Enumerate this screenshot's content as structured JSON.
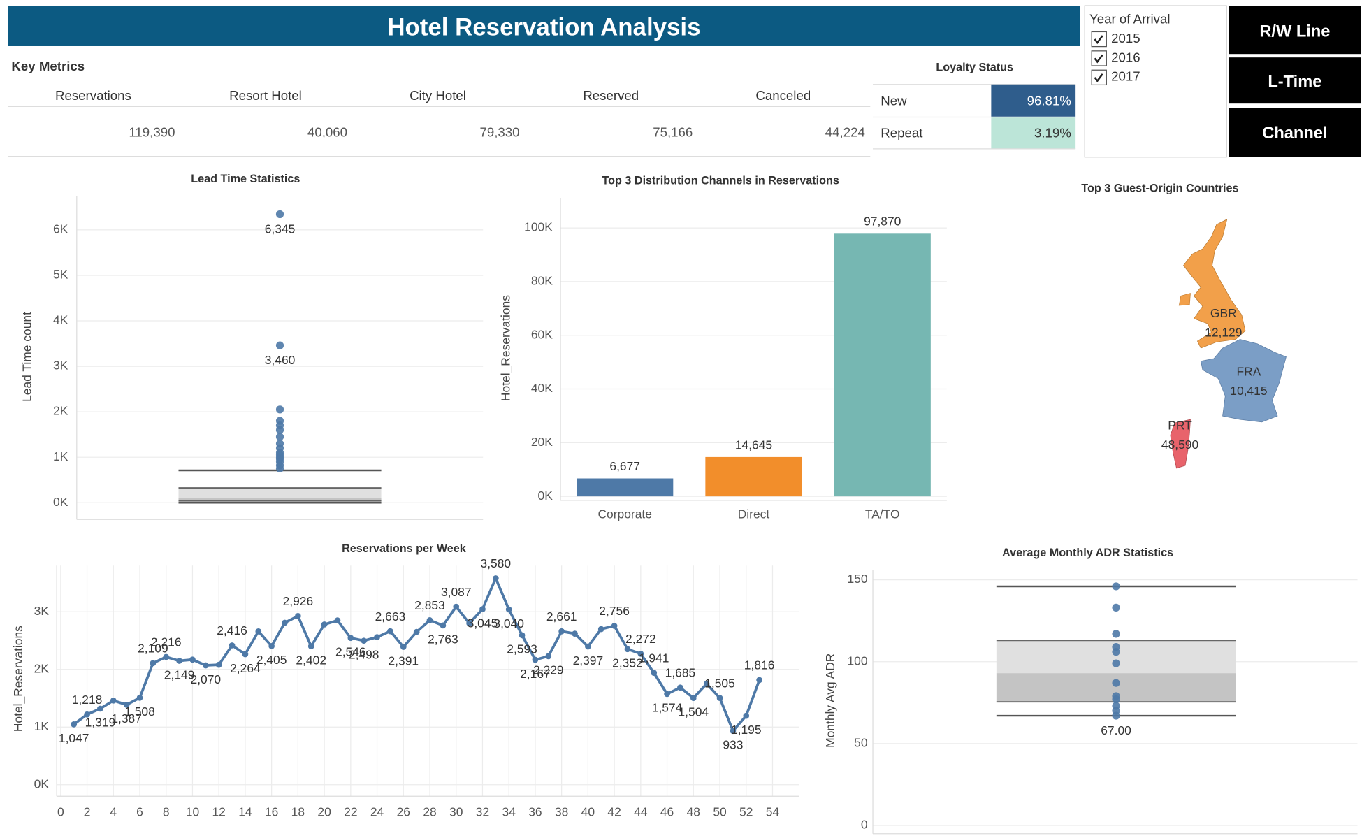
{
  "header": {
    "title": "Hotel Reservation Analysis"
  },
  "key_metrics": {
    "title": "Key Metrics",
    "columns": [
      "Reservations",
      "Resort Hotel",
      "City Hotel",
      "Reserved",
      "Canceled"
    ],
    "values": [
      "119,390",
      "40,060",
      "79,330",
      "75,166",
      "44,224"
    ]
  },
  "loyalty": {
    "title": "Loyalty Status",
    "rows": [
      [
        "New",
        "96.81%"
      ],
      [
        "Repeat",
        "3.19%"
      ]
    ]
  },
  "filter": {
    "title": "Year of Arrival",
    "options": [
      "2015",
      "2016",
      "2017"
    ]
  },
  "buttons": [
    "R/W Line",
    "L-Time",
    "Channel"
  ],
  "chart_data": [
    {
      "type": "box",
      "title": "Lead Time Statistics",
      "y_label": "Lead Time count",
      "color": "#4e79a7",
      "grid": true,
      "ylim": [
        -370,
        6750
      ],
      "yticks": [
        {
          "value": 0,
          "label": "0K"
        },
        {
          "value": 1000,
          "label": "1K"
        },
        {
          "value": 2000,
          "label": "2K"
        },
        {
          "value": 3000,
          "label": "3K"
        },
        {
          "value": 4000,
          "label": "4K"
        },
        {
          "value": 5000,
          "label": "5K"
        },
        {
          "value": 6000,
          "label": "6K"
        }
      ],
      "box": {
        "whislo": 0,
        "q1": 40,
        "median": 100,
        "q3": 325,
        "whishi": 710
      },
      "values": [
        750,
        820,
        900,
        960,
        1000,
        1050,
        1100,
        1200,
        1300,
        1450,
        1600,
        1700,
        1800,
        2050,
        3460,
        6345
      ],
      "value_labels": [
        null,
        null,
        null,
        null,
        null,
        null,
        null,
        null,
        null,
        null,
        null,
        null,
        null,
        null,
        "3,460",
        "6,345"
      ]
    },
    {
      "type": "bar",
      "title": "Top 3 Distribution Channels in Reservations",
      "y_label": "Hotel_Reservations",
      "grid": true,
      "categories": [
        "Corporate",
        "Direct",
        "TA/TO"
      ],
      "values": [
        6677,
        14645,
        97870
      ],
      "value_labels": [
        "6,677",
        "14,645",
        "97,870"
      ],
      "colors": [
        "#4e79a7",
        "#f28e2b",
        "#76b7b2"
      ],
      "ylim": [
        -1500,
        111000
      ],
      "yticks": [
        {
          "value": 0,
          "label": "0K"
        },
        {
          "value": 20000,
          "label": "20K"
        },
        {
          "value": 40000,
          "label": "40K"
        },
        {
          "value": 60000,
          "label": "60K"
        },
        {
          "value": 80000,
          "label": "80K"
        },
        {
          "value": 100000,
          "label": "100K"
        }
      ]
    },
    {
      "type": "map",
      "title": "Top 3 Guest-Origin Countries",
      "categories": [
        "GBR",
        "FRA",
        "PRT"
      ],
      "values": [
        12129,
        10415,
        48590
      ],
      "value_labels": [
        "12,129",
        "10,415",
        "48,590"
      ],
      "colors": [
        "#f2a04a",
        "#7b9ec6",
        "#e8636b"
      ]
    },
    {
      "type": "line",
      "title": "Reservations per Week",
      "y_label": "Hotel_Reservations",
      "color": "#4e79a7",
      "grid": true,
      "x": [
        1,
        2,
        3,
        4,
        5,
        6,
        7,
        8,
        9,
        10,
        11,
        12,
        13,
        14,
        15,
        16,
        17,
        18,
        19,
        20,
        21,
        22,
        23,
        24,
        25,
        26,
        27,
        28,
        29,
        30,
        31,
        32,
        33,
        34,
        35,
        36,
        37,
        38,
        39,
        40,
        41,
        42,
        43,
        44,
        45,
        46,
        47,
        48,
        49,
        50,
        51,
        52,
        53
      ],
      "values": [
        1047,
        1218,
        1319,
        1460,
        1387,
        1508,
        2109,
        2216,
        2149,
        2170,
        2070,
        2080,
        2416,
        2264,
        2660,
        2405,
        2810,
        2926,
        2402,
        2780,
        2850,
        2546,
        2498,
        2560,
        2663,
        2391,
        2650,
        2853,
        2763,
        3087,
        2800,
        3045,
        3580,
        3040,
        2593,
        2167,
        2229,
        2661,
        2620,
        2397,
        2700,
        2756,
        2352,
        2272,
        1941,
        1574,
        1685,
        1504,
        1750,
        1505,
        933,
        1195,
        1816
      ],
      "value_labels": [
        "1,047",
        "1,218",
        "1,319",
        null,
        "1,387",
        "1,508",
        "2,109",
        "2,216",
        "2,149",
        null,
        "2,070",
        null,
        "2,416",
        "2,264",
        null,
        "2,405",
        null,
        "2,926",
        "2,402",
        null,
        null,
        "2,546",
        "2,498",
        null,
        "2,663",
        "2,391",
        null,
        "2,853",
        "2,763",
        "3,087",
        null,
        "3,045",
        "3,580",
        "3,040",
        "2,593",
        "2,167",
        "2,229",
        "2,661",
        null,
        "2,397",
        null,
        "2,756",
        "2,352",
        "2,272",
        "1,941",
        "1,574",
        "1,685",
        "1,504",
        null,
        "1,505",
        "933",
        "1,195",
        "1,816"
      ],
      "xlim": [
        -0.3,
        56
      ],
      "xticks": [
        0,
        2,
        4,
        6,
        8,
        10,
        12,
        14,
        16,
        18,
        20,
        22,
        24,
        26,
        28,
        30,
        32,
        34,
        36,
        38,
        40,
        42,
        44,
        46,
        48,
        50,
        52,
        54
      ],
      "ylim": [
        -200,
        3800
      ],
      "yticks": [
        {
          "value": 0,
          "label": "0K"
        },
        {
          "value": 1000,
          "label": "1K"
        },
        {
          "value": 2000,
          "label": "2K"
        },
        {
          "value": 3000,
          "label": "3K"
        }
      ]
    },
    {
      "type": "box",
      "title": "Average Monthly ADR Statistics",
      "y_label": "Monthly Avg ADR",
      "color": "#4e79a7",
      "grid": true,
      "ylim": [
        -5,
        156
      ],
      "yticks": [
        0,
        50,
        100,
        150
      ],
      "box": {
        "whislo": 67,
        "q1": 75.5,
        "median": 93,
        "q3": 113,
        "whishi": 146
      },
      "box_value_labels": {
        "whislo": "67.00"
      },
      "values": [
        146,
        133,
        117,
        109,
        106,
        99,
        87,
        79,
        77,
        73,
        70,
        67
      ]
    }
  ]
}
